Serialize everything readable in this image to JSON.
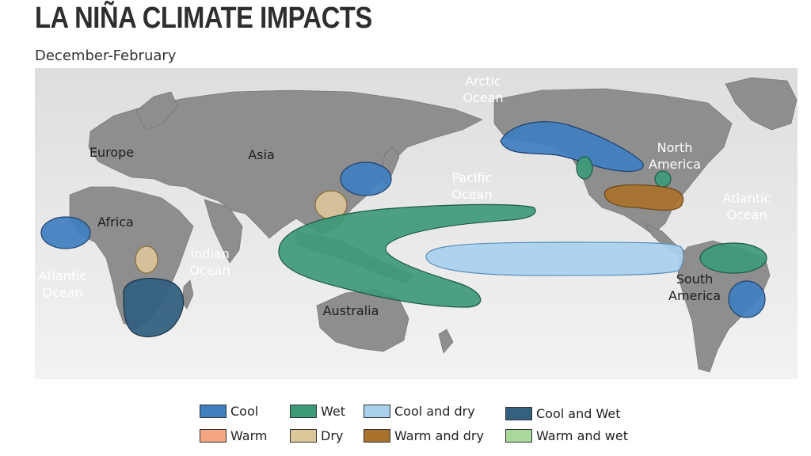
{
  "title": "LA NIÑA CLIMATE IMPACTS",
  "subtitle": "December-February",
  "map_labels": {
    "arctic": "Arctic\nOcean",
    "europe": "Europe",
    "asia": "Asia",
    "africa": "Africa",
    "indian": "Indian\nOcean",
    "atlantic_w": "Atlantic\nOcean",
    "pacific": "Pacific\nOcean",
    "north_america": "North\nAmerica",
    "atlantic_e": "Atlantic\nOcean",
    "south_america": "South\nAmerica",
    "australia": "Australia"
  },
  "legend": [
    {
      "label": "Cool",
      "color": "#3f7fbf"
    },
    {
      "label": "Wet",
      "color": "#3d9a77"
    },
    {
      "label": "Cool and dry",
      "color": "#a9d1ee"
    },
    {
      "label": "Cool and Wet",
      "color": "#34617f"
    },
    {
      "label": "Warm",
      "color": "#f4a582"
    },
    {
      "label": "Dry",
      "color": "#dcc79b"
    },
    {
      "label": "Warm and dry",
      "color": "#a8712c"
    },
    {
      "label": "Warm and wet",
      "color": "#a9d99a"
    }
  ]
}
